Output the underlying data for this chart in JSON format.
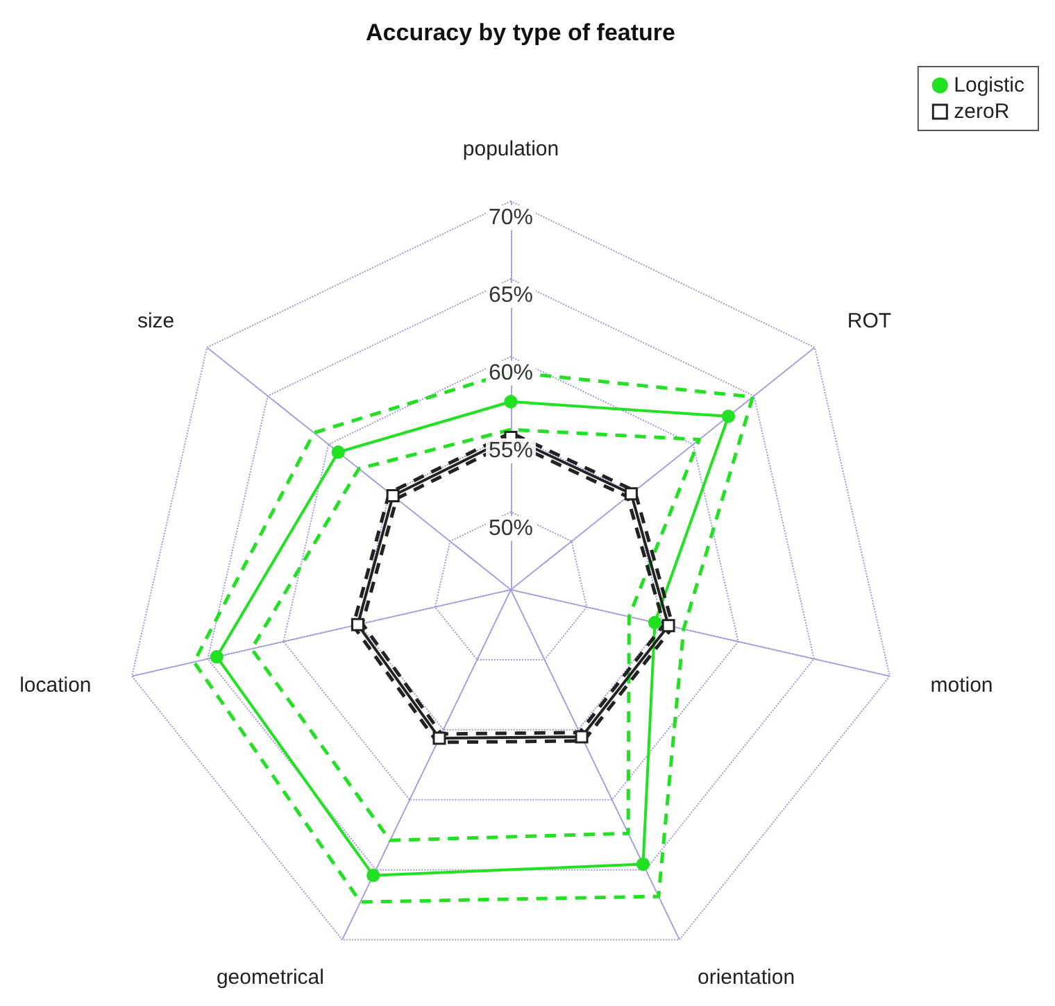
{
  "chart_data": {
    "type": "radar",
    "title": "Accuracy by type of feature",
    "categories": [
      "population",
      "ROT",
      "motion",
      "orientation",
      "geometrical",
      "location",
      "size"
    ],
    "ylim": [
      45,
      70
    ],
    "yticks": [
      {
        "value": 50,
        "label": "50%"
      },
      {
        "value": 55,
        "label": "55%"
      },
      {
        "value": 60,
        "label": "60%"
      },
      {
        "value": 65,
        "label": "65%"
      },
      {
        "value": 70,
        "label": "70%"
      }
    ],
    "grid": true,
    "legend": "top right",
    "series": [
      {
        "name": "Logistic",
        "color": "#22e022",
        "marker": "circle",
        "line_style": "solid",
        "values": [
          57.1,
          62.9,
          54.5,
          64.6,
          65.4,
          64.4,
          59.2
        ]
      },
      {
        "color": "#22e022",
        "marker": "none",
        "line_style": "dashed",
        "values": [
          55.3,
          60.5,
          52.8,
          62.4,
          62.9,
          62.1,
          57.5
        ]
      },
      {
        "color": "#22e022",
        "marker": "none",
        "line_style": "dashed",
        "values": [
          59.0,
          64.9,
          56.4,
          66.9,
          67.3,
          65.9,
          61.2
        ]
      },
      {
        "name": "zeroR",
        "color": "#222222",
        "marker": "square",
        "line_style": "solid",
        "values": [
          54.8,
          54.9,
          55.4,
          55.5,
          55.6,
          55.1,
          54.7
        ]
      },
      {
        "color": "#222222",
        "marker": "none",
        "line_style": "dashed",
        "values": [
          54.5,
          54.6,
          55.1,
          55.2,
          55.3,
          54.8,
          54.4
        ]
      },
      {
        "color": "#222222",
        "marker": "none",
        "line_style": "dashed",
        "values": [
          55.1,
          55.2,
          55.7,
          55.8,
          55.9,
          55.4,
          55.0
        ]
      }
    ]
  }
}
